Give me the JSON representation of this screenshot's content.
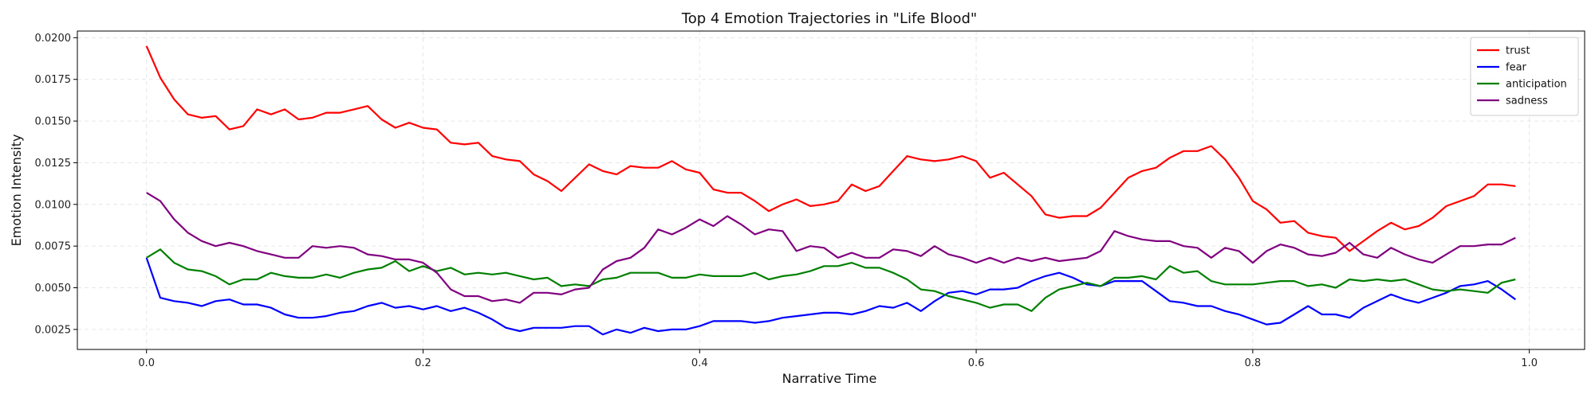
{
  "chart_data": {
    "type": "line",
    "title": "Top 4 Emotion Trajectories in \"Life Blood\"",
    "xlabel": "Narrative Time",
    "ylabel": "Emotion Intensity",
    "xlim": [
      -0.05,
      1.04
    ],
    "ylim": [
      0.0013,
      0.0204
    ],
    "xticks": [
      0.0,
      0.2,
      0.4,
      0.6,
      0.8,
      1.0
    ],
    "xtick_labels": [
      "0.0",
      "0.2",
      "0.4",
      "0.6",
      "0.8",
      "1.0"
    ],
    "yticks": [
      0.0025,
      0.005,
      0.0075,
      0.01,
      0.0125,
      0.015,
      0.0175,
      0.02
    ],
    "ytick_labels": [
      "0.0025",
      "0.0050",
      "0.0075",
      "0.0100",
      "0.0125",
      "0.0150",
      "0.0175",
      "0.0200"
    ],
    "grid": true,
    "legend_position": "top-right",
    "x_start": 0.0,
    "x_step": 0.01,
    "series": [
      {
        "name": "trust",
        "color": "#ff0000",
        "values": [
          0.0195,
          0.0176,
          0.0163,
          0.0154,
          0.0152,
          0.0153,
          0.0145,
          0.0147,
          0.0157,
          0.0154,
          0.0157,
          0.0151,
          0.0152,
          0.0155,
          0.0155,
          0.0157,
          0.0159,
          0.0151,
          0.0146,
          0.0149,
          0.0146,
          0.0145,
          0.0137,
          0.0136,
          0.0137,
          0.0129,
          0.0127,
          0.0126,
          0.0118,
          0.0114,
          0.0108,
          0.0116,
          0.0124,
          0.012,
          0.0118,
          0.0123,
          0.0122,
          0.0122,
          0.0126,
          0.0121,
          0.0119,
          0.0109,
          0.0107,
          0.0107,
          0.0102,
          0.0096,
          0.01,
          0.0103,
          0.0099,
          0.01,
          0.0102,
          0.0112,
          0.0108,
          0.0111,
          0.012,
          0.0129,
          0.0127,
          0.0126,
          0.0127,
          0.0129,
          0.0126,
          0.0116,
          0.0119,
          0.0112,
          0.0105,
          0.0094,
          0.0092,
          0.0093,
          0.0093,
          0.0098,
          0.0107,
          0.0116,
          0.012,
          0.0122,
          0.0128,
          0.0132,
          0.0132,
          0.0135,
          0.0127,
          0.0116,
          0.0102,
          0.0097,
          0.0089,
          0.009,
          0.0083,
          0.0081,
          0.008,
          0.0072,
          0.0078,
          0.0084,
          0.0089,
          0.0085,
          0.0087,
          0.0092,
          0.0099,
          0.0102,
          0.0105,
          0.0112,
          0.0112,
          0.0111
        ]
      },
      {
        "name": "fear",
        "color": "#0000ff",
        "values": [
          0.0068,
          0.0044,
          0.0042,
          0.0041,
          0.0039,
          0.0042,
          0.0043,
          0.004,
          0.004,
          0.0038,
          0.0034,
          0.0032,
          0.0032,
          0.0033,
          0.0035,
          0.0036,
          0.0039,
          0.0041,
          0.0038,
          0.0039,
          0.0037,
          0.0039,
          0.0036,
          0.0038,
          0.0035,
          0.0031,
          0.0026,
          0.0024,
          0.0026,
          0.0026,
          0.0026,
          0.0027,
          0.0027,
          0.0022,
          0.0025,
          0.0023,
          0.0026,
          0.0024,
          0.0025,
          0.0025,
          0.0027,
          0.003,
          0.003,
          0.003,
          0.0029,
          0.003,
          0.0032,
          0.0033,
          0.0034,
          0.0035,
          0.0035,
          0.0034,
          0.0036,
          0.0039,
          0.0038,
          0.0041,
          0.0036,
          0.0042,
          0.0047,
          0.0048,
          0.0046,
          0.0049,
          0.0049,
          0.005,
          0.0054,
          0.0057,
          0.0059,
          0.0056,
          0.0052,
          0.0051,
          0.0054,
          0.0054,
          0.0054,
          0.0048,
          0.0042,
          0.0041,
          0.0039,
          0.0039,
          0.0036,
          0.0034,
          0.0031,
          0.0028,
          0.0029,
          0.0034,
          0.0039,
          0.0034,
          0.0034,
          0.0032,
          0.0038,
          0.0042,
          0.0046,
          0.0043,
          0.0041,
          0.0044,
          0.0047,
          0.0051,
          0.0052,
          0.0054,
          0.0049,
          0.0043
        ]
      },
      {
        "name": "anticipation",
        "color": "#008000",
        "values": [
          0.0068,
          0.0073,
          0.0065,
          0.0061,
          0.006,
          0.0057,
          0.0052,
          0.0055,
          0.0055,
          0.0059,
          0.0057,
          0.0056,
          0.0056,
          0.0058,
          0.0056,
          0.0059,
          0.0061,
          0.0062,
          0.0066,
          0.006,
          0.0063,
          0.006,
          0.0062,
          0.0058,
          0.0059,
          0.0058,
          0.0059,
          0.0057,
          0.0055,
          0.0056,
          0.0051,
          0.0052,
          0.0051,
          0.0055,
          0.0056,
          0.0059,
          0.0059,
          0.0059,
          0.0056,
          0.0056,
          0.0058,
          0.0057,
          0.0057,
          0.0057,
          0.0059,
          0.0055,
          0.0057,
          0.0058,
          0.006,
          0.0063,
          0.0063,
          0.0065,
          0.0062,
          0.0062,
          0.0059,
          0.0055,
          0.0049,
          0.0048,
          0.0045,
          0.0043,
          0.0041,
          0.0038,
          0.004,
          0.004,
          0.0036,
          0.0044,
          0.0049,
          0.0051,
          0.0053,
          0.0051,
          0.0056,
          0.0056,
          0.0057,
          0.0055,
          0.0063,
          0.0059,
          0.006,
          0.0054,
          0.0052,
          0.0052,
          0.0052,
          0.0053,
          0.0054,
          0.0054,
          0.0051,
          0.0052,
          0.005,
          0.0055,
          0.0054,
          0.0055,
          0.0054,
          0.0055,
          0.0052,
          0.0049,
          0.0048,
          0.0049,
          0.0048,
          0.0047,
          0.0053,
          0.0055
        ]
      },
      {
        "name": "sadness",
        "color": "#800080",
        "values": [
          0.0107,
          0.0102,
          0.0091,
          0.0083,
          0.0078,
          0.0075,
          0.0077,
          0.0075,
          0.0072,
          0.007,
          0.0068,
          0.0068,
          0.0075,
          0.0074,
          0.0075,
          0.0074,
          0.007,
          0.0069,
          0.0067,
          0.0067,
          0.0065,
          0.0059,
          0.0049,
          0.0045,
          0.0045,
          0.0042,
          0.0043,
          0.0041,
          0.0047,
          0.0047,
          0.0046,
          0.0049,
          0.005,
          0.0061,
          0.0066,
          0.0068,
          0.0074,
          0.0085,
          0.0082,
          0.0086,
          0.0091,
          0.0087,
          0.0093,
          0.0088,
          0.0082,
          0.0085,
          0.0084,
          0.0072,
          0.0075,
          0.0074,
          0.0068,
          0.0071,
          0.0068,
          0.0068,
          0.0073,
          0.0072,
          0.0069,
          0.0075,
          0.007,
          0.0068,
          0.0065,
          0.0068,
          0.0065,
          0.0068,
          0.0066,
          0.0068,
          0.0066,
          0.0067,
          0.0068,
          0.0072,
          0.0084,
          0.0081,
          0.0079,
          0.0078,
          0.0078,
          0.0075,
          0.0074,
          0.0068,
          0.0074,
          0.0072,
          0.0065,
          0.0072,
          0.0076,
          0.0074,
          0.007,
          0.0069,
          0.0071,
          0.0077,
          0.007,
          0.0068,
          0.0074,
          0.007,
          0.0067,
          0.0065,
          0.007,
          0.0075,
          0.0075,
          0.0076,
          0.0076,
          0.008
        ]
      }
    ]
  }
}
